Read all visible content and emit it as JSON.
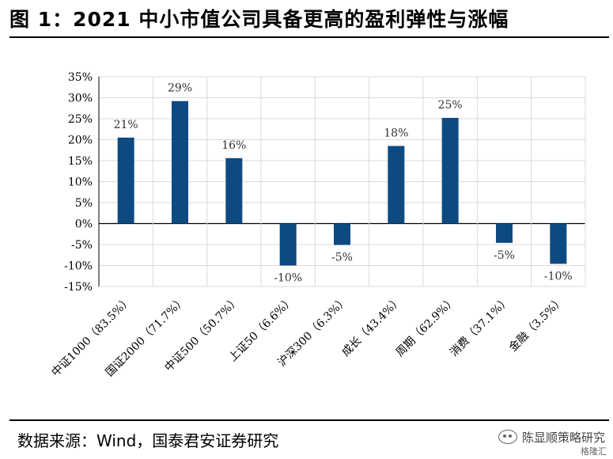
{
  "figure": {
    "title": "图 1：2021 中小市值公司具备更高的盈利弹性与涨幅",
    "source": "数据来源：Wind，国泰君安证券研究",
    "watermark": "陈显顺策略研究",
    "watermark_sub": "格隆汇"
  },
  "chart_data": {
    "type": "bar",
    "title": "2021 中小市值公司具备更高的盈利弹性与涨幅",
    "categories": [
      "中证1000（83.5%）",
      "国证2000（71.7%）",
      "中证500（50.7%）",
      "上证50（6.6%）",
      "沪深300（6.3%）",
      "成长（43.4%）",
      "周期（62.9%）",
      "消费（37.1%）",
      "金融（3.5%）"
    ],
    "values": [
      20.5,
      29.2,
      15.6,
      -10.0,
      -5.1,
      18.5,
      25.2,
      -4.6,
      -9.6
    ],
    "data_labels": [
      "21%",
      "29%",
      "16%",
      "-10%",
      "-5%",
      "18%",
      "25%",
      "-5%",
      "-10%"
    ],
    "ylim": [
      -15,
      35
    ],
    "yticks": [
      -15,
      -10,
      -5,
      0,
      5,
      10,
      15,
      20,
      25,
      30,
      35
    ],
    "ytick_labels": [
      "-15%",
      "-10%",
      "-5%",
      "0%",
      "5%",
      "10%",
      "15%",
      "20%",
      "25%",
      "30%",
      "35%"
    ],
    "xlabel": "",
    "ylabel": "",
    "grid": true,
    "bar_color": "#0D4A82"
  }
}
